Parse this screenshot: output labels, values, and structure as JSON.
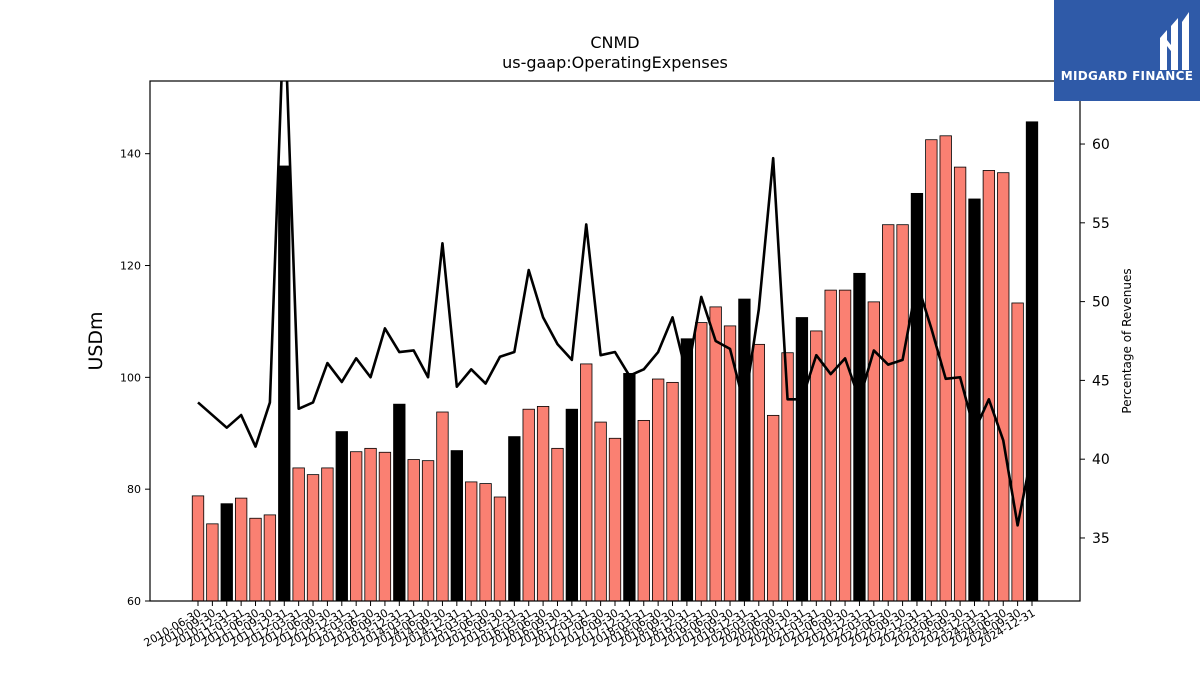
{
  "chart_data": {
    "type": "bar",
    "title": "CNMD",
    "subtitle": "us-gaap:OperatingExpenses",
    "ylabel": "USDm",
    "y2label": "Percentage of Revenues",
    "ylim": [
      60,
      153
    ],
    "y2lim": [
      31,
      64
    ],
    "yticks": [
      60,
      80,
      100,
      120,
      140
    ],
    "y2ticks": [
      35,
      40,
      45,
      50,
      55,
      60
    ],
    "categories": [
      "2010-06-30",
      "2010-09-30",
      "2010-12-31",
      "2011-03-31",
      "2011-06-30",
      "2011-09-30",
      "2011-12-31",
      "2012-03-31",
      "2012-06-30",
      "2012-09-30",
      "2012-12-31",
      "2013-03-31",
      "2013-06-30",
      "2013-09-30",
      "2013-12-31",
      "2014-03-31",
      "2014-06-30",
      "2014-09-30",
      "2014-12-31",
      "2015-03-31",
      "2015-06-30",
      "2015-09-30",
      "2015-12-31",
      "2016-03-31",
      "2016-06-30",
      "2016-09-30",
      "2016-12-31",
      "2017-03-31",
      "2017-06-30",
      "2017-09-30",
      "2017-12-31",
      "2018-03-31",
      "2018-06-30",
      "2018-09-30",
      "2018-12-31",
      "2019-03-31",
      "2019-06-30",
      "2019-09-30",
      "2019-12-31",
      "2020-03-31",
      "2020-06-30",
      "2020-09-30",
      "2020-12-31",
      "2021-03-31",
      "2021-06-30",
      "2021-09-30",
      "2021-12-31",
      "2022-03-31",
      "2022-06-30",
      "2022-09-30",
      "2022-12-31",
      "2023-03-31",
      "2023-06-30",
      "2023-09-30",
      "2023-12-31",
      "2024-03-31",
      "2024-06-30",
      "2024-09-30",
      "2024-12-31"
    ],
    "series": [
      {
        "type": "bar",
        "axis": "left",
        "values": [
          78.8,
          73.8,
          77.4,
          78.4,
          74.8,
          75.4,
          137.8,
          83.8,
          82.6,
          83.8,
          90.3,
          86.7,
          87.3,
          86.6,
          95.2,
          85.3,
          85.1,
          93.8,
          86.9,
          81.3,
          81.0,
          78.6,
          89.4,
          94.3,
          94.8,
          87.3,
          94.3,
          102.4,
          92.0,
          89.1,
          100.7,
          92.3,
          99.7,
          99.1,
          106.9,
          109.8,
          112.6,
          109.2,
          114.0,
          105.9,
          93.2,
          104.4,
          110.7,
          108.3,
          115.6,
          115.6,
          118.6,
          113.5,
          127.3,
          127.3,
          132.9,
          142.5,
          143.2,
          137.6,
          131.9,
          137.0,
          136.6,
          113.3,
          145.7
        ],
        "highlight_color": "#000000",
        "bar_color": "#fa8072"
      },
      {
        "type": "line",
        "axis": "right",
        "values": [
          43.6,
          42.8,
          42.0,
          42.8,
          40.8,
          43.6,
          69.0,
          43.2,
          43.6,
          46.1,
          44.9,
          46.4,
          45.2,
          48.3,
          46.8,
          46.9,
          45.2,
          53.7,
          44.6,
          45.7,
          44.8,
          46.5,
          46.8,
          52.0,
          49.0,
          47.3,
          46.3,
          54.9,
          46.6,
          46.8,
          45.3,
          45.7,
          46.8,
          49.0,
          45.3,
          50.3,
          47.5,
          47.0,
          43.4,
          49.5,
          59.1,
          43.8,
          43.8,
          46.6,
          45.4,
          46.4,
          43.8,
          46.9,
          46.0,
          46.3,
          51.2,
          48.3,
          45.1,
          45.2,
          41.8,
          43.8,
          41.2,
          35.8,
          40.4
        ],
        "color": "#000000"
      }
    ],
    "highlight_indices": [
      2,
      6,
      10,
      14,
      18,
      22,
      26,
      30,
      34,
      38,
      42,
      46,
      50,
      54,
      58
    ],
    "grid": false,
    "legend": "none"
  },
  "logo": {
    "text": "MIDGARD FINANCE",
    "bg": "#2f5aa8"
  }
}
